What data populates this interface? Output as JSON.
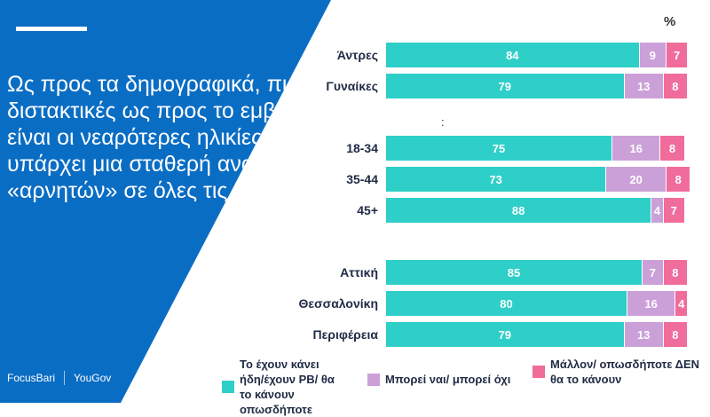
{
  "headline": "Ως προς τα δημογραφικά, πιο διστακτικές ως προς το εμβόλιο είναι οι νεαρότερες ηλικίες, ενώ υπάρχει μια σταθερή αναλογία «αρνητών» σε όλες τις ηλικίες",
  "logos": {
    "focus": "FocusBari",
    "yougov": "YouGov"
  },
  "colors": {
    "panel": "#0a6dc4",
    "yes": "#2ecfc8",
    "maybe": "#cba0d8",
    "no": "#f06c9b"
  },
  "chart_data": {
    "type": "bar",
    "orientation": "horizontal",
    "stacked": true,
    "unit": "%",
    "unit_label": "%",
    "group_separator_label": ":",
    "categories": [
      "Άντρες",
      "Γυναίκες",
      "18-34",
      "35-44",
      "45+",
      "Αττική",
      "Θεσσαλονίκη",
      "Περιφέρεια"
    ],
    "series": [
      {
        "name": "Το έχουν κάνει ήδη/έχουν ΡΒ/ θα το κάνουν οπωσδήποτε",
        "values": [
          84,
          79,
          75,
          73,
          88,
          85,
          80,
          79
        ]
      },
      {
        "name": "Μπορεί ναι/ μπορεί όχι",
        "values": [
          9,
          13,
          16,
          20,
          4,
          7,
          16,
          13
        ]
      },
      {
        "name": "Μάλλον/ οπωσδήποτε ΔΕΝ θα το κάνουν",
        "values": [
          7,
          8,
          8,
          8,
          7,
          8,
          4,
          8
        ]
      }
    ],
    "xlim": [
      0,
      100
    ],
    "legend": "bottom"
  }
}
